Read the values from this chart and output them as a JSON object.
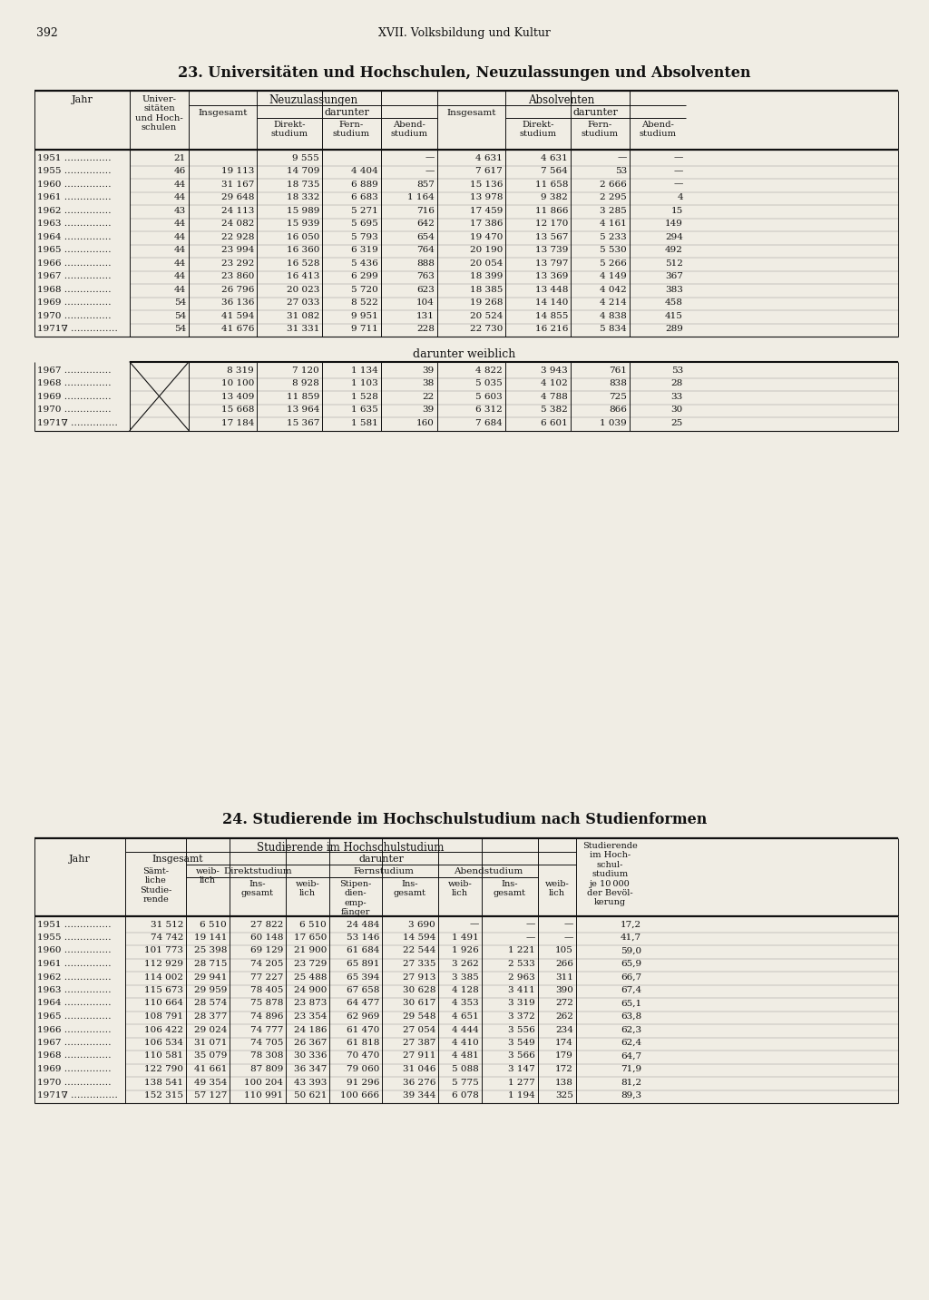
{
  "page_number": "392",
  "header": "XVII. Volksbildung und Kultur",
  "title1": "23. Universitäten und Hochschulen, Neuzulassungen und Absolventen",
  "title2": "24. Studierende im Hochschulstudium nach Studienformen",
  "bg_color": "#f0ede4",
  "table1_data": [
    [
      "1951",
      "21",
      "",
      "9 555",
      "",
      "—",
      "4 631",
      "4 631",
      "—",
      "—"
    ],
    [
      "1955",
      "46",
      "19 113",
      "14 709",
      "4 404",
      "—",
      "7 617",
      "7 564",
      "53",
      "—"
    ],
    [
      "1960",
      "44",
      "31 167",
      "18 735",
      "6 889",
      "857",
      "15 136",
      "11 658",
      "2 666",
      "—"
    ],
    [
      "1961",
      "44",
      "29 648",
      "18 332",
      "6 683",
      "1 164",
      "13 978",
      "9 382",
      "2 295",
      "4"
    ],
    [
      "1962",
      "43",
      "24 113",
      "15 989",
      "5 271",
      "716",
      "17 459",
      "11 866",
      "3 285",
      "15"
    ],
    [
      "1963",
      "44",
      "24 082",
      "15 939",
      "5 695",
      "642",
      "17 386",
      "12 170",
      "4 161",
      "149"
    ],
    [
      "1964",
      "44",
      "22 928",
      "16 050",
      "5 793",
      "654",
      "19 470",
      "13 567",
      "5 233",
      "294"
    ],
    [
      "1965",
      "44",
      "23 994",
      "16 360",
      "6 319",
      "764",
      "20 190",
      "13 739",
      "5 530",
      "492"
    ],
    [
      "1966",
      "44",
      "23 292",
      "16 528",
      "5 436",
      "888",
      "20 054",
      "13 797",
      "5 266",
      "512"
    ],
    [
      "1967",
      "44",
      "23 860",
      "16 413",
      "6 299",
      "763",
      "18 399",
      "13 369",
      "4 149",
      "367"
    ],
    [
      "1968",
      "44",
      "26 796",
      "20 023",
      "5 720",
      "623",
      "18 385",
      "13 448",
      "4 042",
      "383"
    ],
    [
      "1969",
      "54",
      "36 136",
      "27 033",
      "8 522",
      "104",
      "19 268",
      "14 140",
      "4 214",
      "458"
    ],
    [
      "1970",
      "54",
      "41 594",
      "31 082",
      "9 951",
      "131",
      "20 524",
      "14 855",
      "4 838",
      "415"
    ],
    [
      "1971∇",
      "54",
      "41 676",
      "31 331",
      "9 711",
      "228",
      "22 730",
      "16 216",
      "5 834",
      "289"
    ]
  ],
  "table1_weiblich": [
    [
      "1967",
      "8 319",
      "7 120",
      "1 134",
      "39",
      "4 822",
      "3 943",
      "761",
      "53"
    ],
    [
      "1968",
      "10 100",
      "8 928",
      "1 103",
      "38",
      "5 035",
      "4 102",
      "838",
      "28"
    ],
    [
      "1969",
      "13 409",
      "11 859",
      "1 528",
      "22",
      "5 603",
      "4 788",
      "725",
      "33"
    ],
    [
      "1970",
      "15 668",
      "13 964",
      "1 635",
      "39",
      "6 312",
      "5 382",
      "866",
      "30"
    ],
    [
      "1971∇",
      "17 184",
      "15 367",
      "1 581",
      "160",
      "7 684",
      "6 601",
      "1 039",
      "25"
    ]
  ],
  "table2_data": [
    [
      "1951",
      "31 512",
      "6 510",
      "27 822",
      "6 510",
      "24 484",
      "3 690",
      "—",
      "—",
      "—",
      "17,2"
    ],
    [
      "1955",
      "74 742",
      "19 141",
      "60 148",
      "17 650",
      "53 146",
      "14 594",
      "1 491",
      "—",
      "—",
      "41,7"
    ],
    [
      "1960",
      "101 773",
      "25 398",
      "69 129",
      "21 900",
      "61 684",
      "22 544",
      "1 926",
      "1 221",
      "105",
      "59,0"
    ],
    [
      "1961",
      "112 929",
      "28 715",
      "74 205",
      "23 729",
      "65 891",
      "27 335",
      "3 262",
      "2 533",
      "266",
      "65,9"
    ],
    [
      "1962",
      "114 002",
      "29 941",
      "77 227",
      "25 488",
      "65 394",
      "27 913",
      "3 385",
      "2 963",
      "311",
      "66,7"
    ],
    [
      "1963",
      "115 673",
      "29 959",
      "78 405",
      "24 900",
      "67 658",
      "30 628",
      "4 128",
      "3 411",
      "390",
      "67,4"
    ],
    [
      "1964",
      "110 664",
      "28 574",
      "75 878",
      "23 873",
      "64 477",
      "30 617",
      "4 353",
      "3 319",
      "272",
      "65,1"
    ],
    [
      "1965",
      "108 791",
      "28 377",
      "74 896",
      "23 354",
      "62 969",
      "29 548",
      "4 651",
      "3 372",
      "262",
      "63,8"
    ],
    [
      "1966",
      "106 422",
      "29 024",
      "74 777",
      "24 186",
      "61 470",
      "27 054",
      "4 444",
      "3 556",
      "234",
      "62,3"
    ],
    [
      "1967",
      "106 534",
      "31 071",
      "74 705",
      "26 367",
      "61 818",
      "27 387",
      "4 410",
      "3 549",
      "174",
      "62,4"
    ],
    [
      "1968",
      "110 581",
      "35 079",
      "78 308",
      "30 336",
      "70 470",
      "27 911",
      "4 481",
      "3 566",
      "179",
      "64,7"
    ],
    [
      "1969",
      "122 790",
      "41 661",
      "87 809",
      "36 347",
      "79 060",
      "31 046",
      "5 088",
      "3 147",
      "172",
      "71,9"
    ],
    [
      "1970",
      "138 541",
      "49 354",
      "100 204",
      "43 393",
      "91 296",
      "36 276",
      "5 775",
      "1 277",
      "138",
      "81,2"
    ],
    [
      "1971∇",
      "152 315",
      "57 127",
      "110 991",
      "50 621",
      "100 666",
      "39 344",
      "6 078",
      "1 194",
      "325",
      "89,3"
    ]
  ]
}
